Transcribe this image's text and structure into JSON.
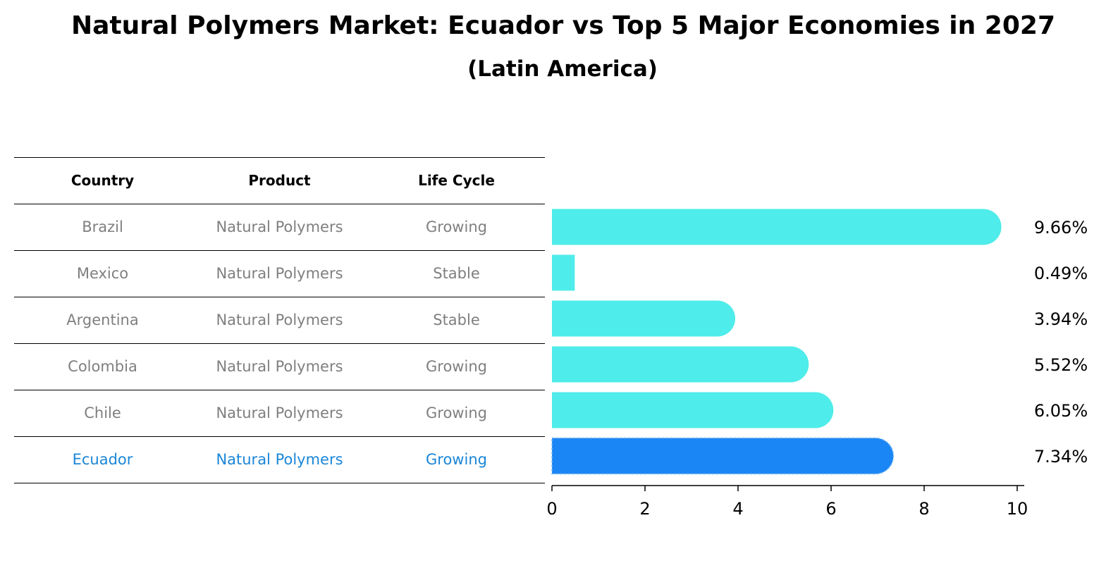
{
  "title": "Natural Polymers Market: Ecuador vs Top 5 Major Economies in 2027",
  "subtitle": "(Latin America)",
  "table": {
    "headers": [
      "Country",
      "Product",
      "Life Cycle"
    ],
    "rows": [
      {
        "country": "Brazil",
        "product": "Natural Polymers",
        "life_cycle": "Growing",
        "highlight": false
      },
      {
        "country": "Mexico",
        "product": "Natural Polymers",
        "life_cycle": "Stable",
        "highlight": false
      },
      {
        "country": "Argentina",
        "product": "Natural Polymers",
        "life_cycle": "Stable",
        "highlight": false
      },
      {
        "country": "Colombia",
        "product": "Natural Polymers",
        "life_cycle": "Growing",
        "highlight": false
      },
      {
        "country": "Chile",
        "product": "Natural Polymers",
        "life_cycle": "Growing",
        "highlight": false
      },
      {
        "country": "Ecuador",
        "product": "Natural Polymers",
        "life_cycle": "Growing",
        "highlight": true
      }
    ]
  },
  "colors": {
    "bar": "#4eecea",
    "highlight_bar": "#1a86f5",
    "highlight_text": "#1a86d8",
    "muted_text": "#7f7f7f"
  },
  "chart_data": {
    "type": "bar",
    "orientation": "horizontal",
    "categories": [
      "Brazil",
      "Mexico",
      "Argentina",
      "Colombia",
      "Chile",
      "Ecuador"
    ],
    "values": [
      9.66,
      0.49,
      3.94,
      5.52,
      6.05,
      7.34
    ],
    "value_labels": [
      "9.66%",
      "0.49%",
      "3.94%",
      "5.52%",
      "6.05%",
      "7.34%"
    ],
    "highlight_category": "Ecuador",
    "xlim": [
      0,
      10
    ],
    "xticks": [
      0,
      2,
      4,
      6,
      8,
      10
    ],
    "xtick_labels": [
      "0",
      "2",
      "4",
      "6",
      "8",
      "10"
    ],
    "xlabel": "",
    "ylabel": "",
    "grid": false,
    "legend": "none"
  }
}
